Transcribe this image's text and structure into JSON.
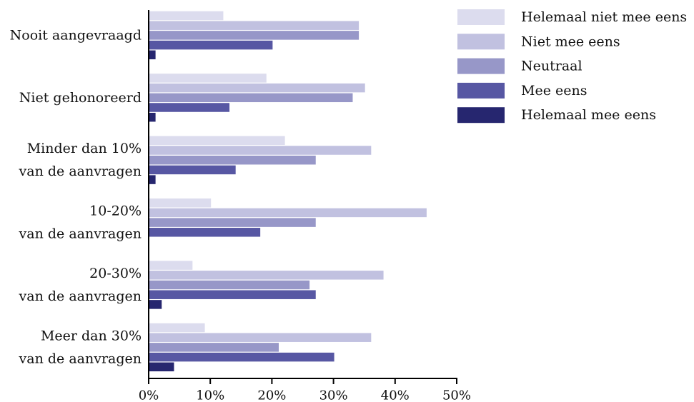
{
  "chart_data": {
    "type": "bar",
    "orientation": "horizontal",
    "title": "",
    "xlabel": "",
    "ylabel": "",
    "xlim": [
      0,
      50
    ],
    "x_ticks": [
      "0%",
      "10%",
      "20%",
      "30%",
      "40%",
      "50%"
    ],
    "grid": false,
    "legend_position": "top-right",
    "categories": [
      [
        "Nooit aangevraagd"
      ],
      [
        "Niet gehonoreerd"
      ],
      [
        "Minder dan 10%",
        "van de aanvragen"
      ],
      [
        "10-20%",
        "van de aanvragen"
      ],
      [
        "20-30%",
        "van de aanvragen"
      ],
      [
        "Meer dan 30%",
        "van de aanvragen"
      ]
    ],
    "series": [
      {
        "name": "Helemaal niet mee eens",
        "color": "#dcdcee",
        "values": [
          12,
          19,
          22,
          10,
          7,
          9
        ]
      },
      {
        "name": "Niet mee eens",
        "color": "#c1c1e0",
        "values": [
          34,
          35,
          36,
          45,
          38,
          36
        ]
      },
      {
        "name": "Neutraal",
        "color": "#9797c8",
        "values": [
          34,
          33,
          27,
          27,
          26,
          21
        ]
      },
      {
        "name": "Mee eens",
        "color": "#5757a3",
        "values": [
          20,
          13,
          14,
          18,
          27,
          30
        ]
      },
      {
        "name": "Helemaal mee eens",
        "color": "#26266f",
        "values": [
          1,
          1,
          1,
          0,
          2,
          4
        ]
      }
    ]
  }
}
